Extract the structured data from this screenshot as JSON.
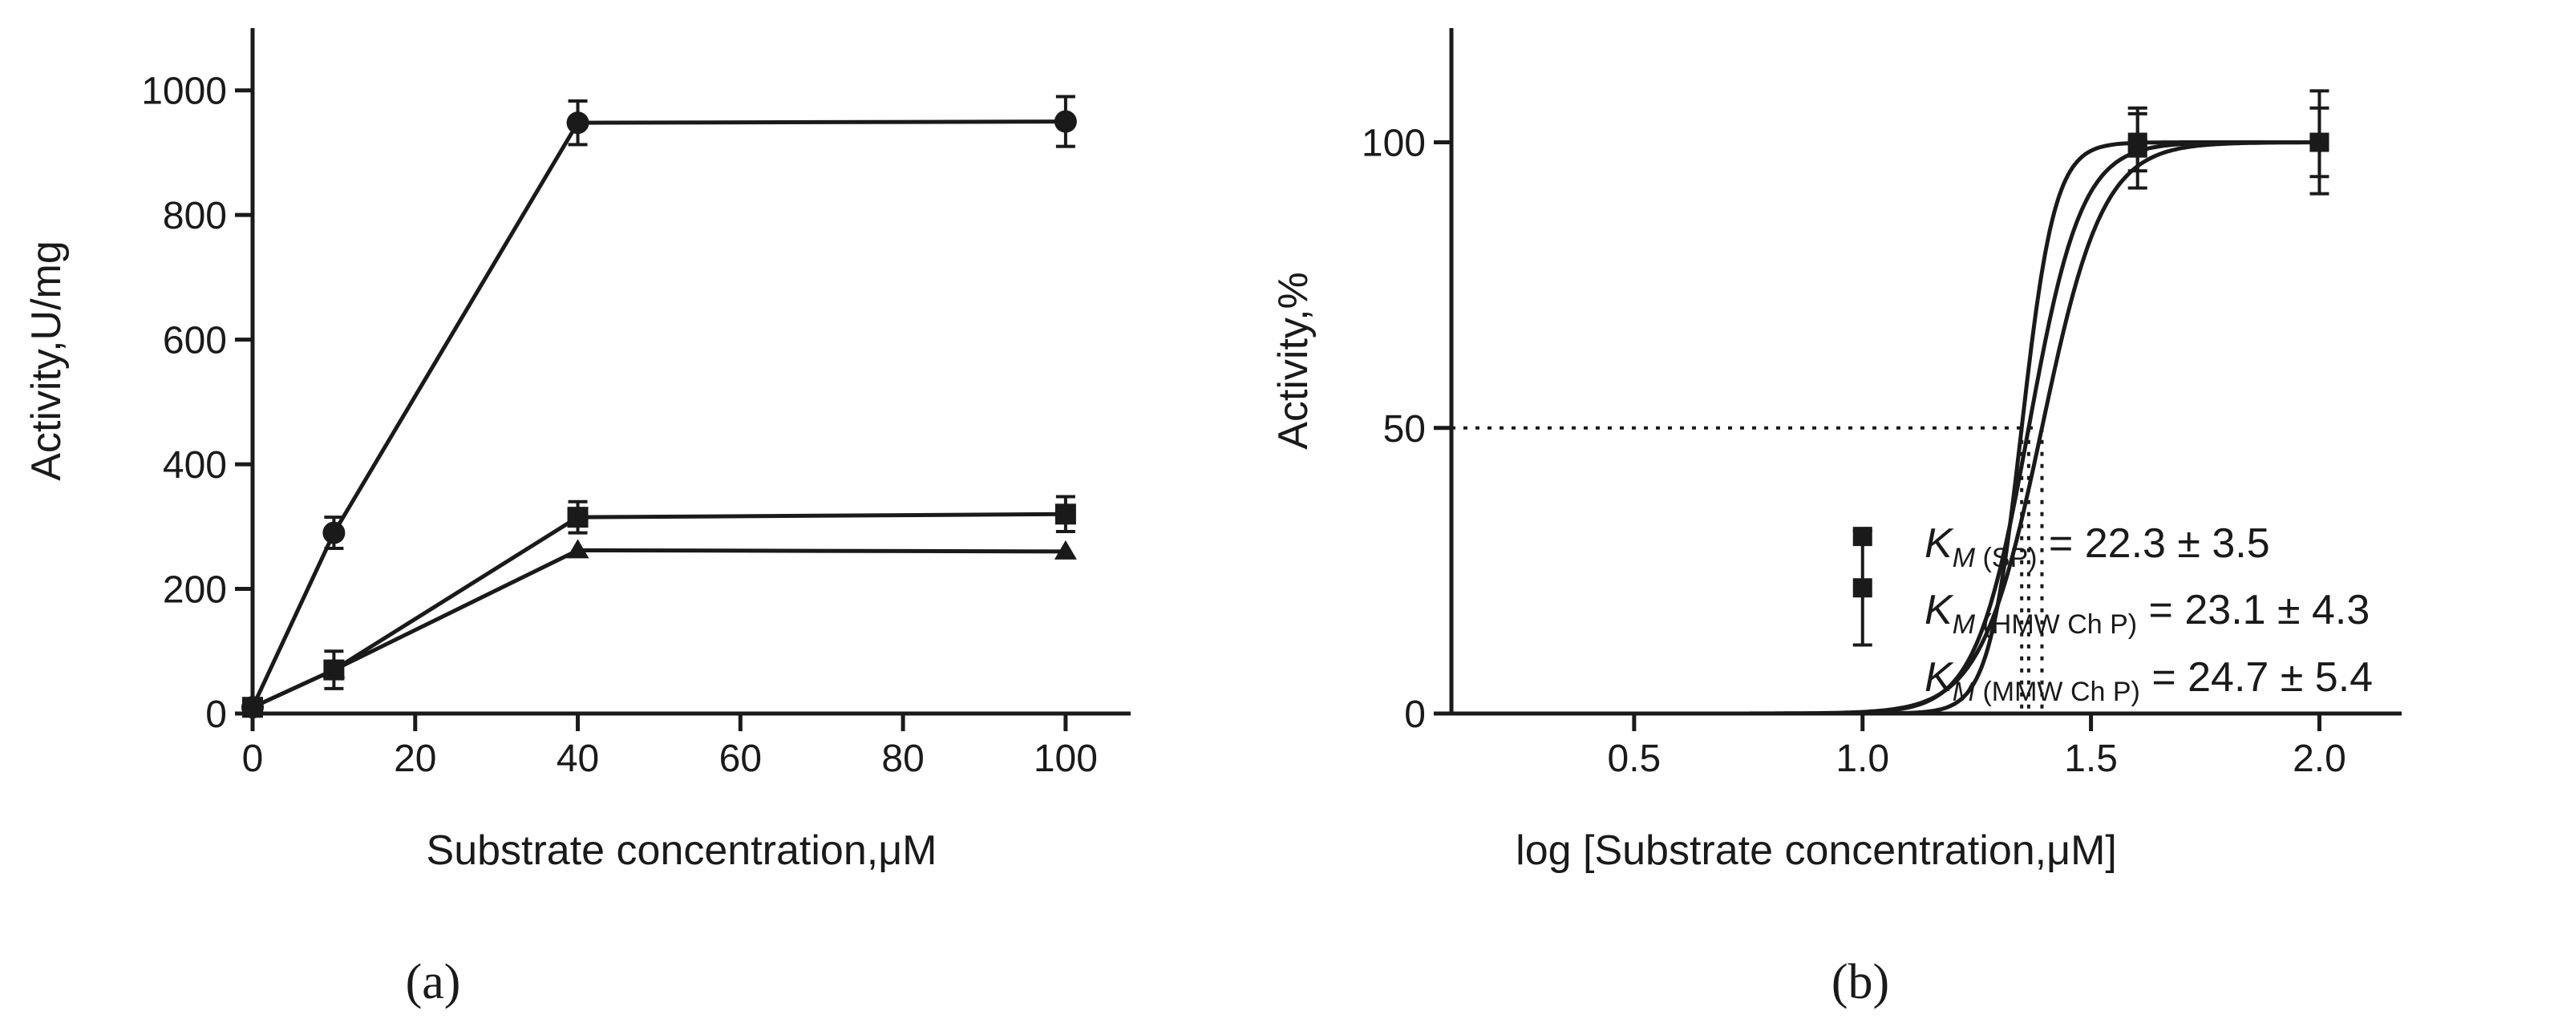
{
  "chart_data": [
    {
      "type": "line",
      "panel_label": "a",
      "title": "",
      "xlabel": "Substrate concentration,μM",
      "ylabel": "Activity,U/mg",
      "xlim": [
        0,
        108
      ],
      "ylim": [
        0,
        1100
      ],
      "x_ticks": [
        0,
        20,
        40,
        60,
        80,
        100
      ],
      "y_ticks": [
        0,
        200,
        400,
        600,
        800,
        1000
      ],
      "x": [
        0,
        10,
        40,
        100
      ],
      "series": [
        {
          "name": "circle",
          "marker": "circle",
          "values": [
            10,
            290,
            948,
            950
          ],
          "errors": [
            5,
            25,
            35,
            40
          ]
        },
        {
          "name": "square",
          "marker": "square",
          "values": [
            10,
            70,
            315,
            320
          ],
          "errors": [
            5,
            30,
            25,
            28
          ]
        },
        {
          "name": "triangle",
          "marker": "triangle",
          "values": [
            10,
            70,
            262,
            260
          ],
          "errors": [
            0,
            0,
            0,
            0
          ]
        }
      ]
    },
    {
      "type": "line",
      "panel_label": "b",
      "title": "",
      "xlabel": "log [Substrate concentration,μM]",
      "ylabel": "Activity,%",
      "xlim": [
        0.1,
        2.18
      ],
      "ylim": [
        0,
        120
      ],
      "x_ticks": [
        0.5,
        1.0,
        1.5,
        2.0
      ],
      "x_tick_labels": [
        "0.5",
        "1.0",
        "1.5",
        "2.0"
      ],
      "y_ticks": [
        0,
        50,
        100
      ],
      "reference_level": 50,
      "fits": [
        {
          "name": "SP",
          "km": 22.3,
          "km_err": 3.5,
          "hill": 12
        },
        {
          "name": "HMW Ch P",
          "km": 23.1,
          "km_err": 4.3,
          "hill": 7.5
        },
        {
          "name": "MMW Ch P",
          "km": 24.7,
          "km_err": 5.4,
          "hill": 6.5
        }
      ],
      "points": [
        {
          "x": 1.0,
          "y": 31,
          "err": 0
        },
        {
          "x": 1.0,
          "y": 22,
          "err": 10
        },
        {
          "x": 1.602,
          "y": 99,
          "err": 7
        },
        {
          "x": 1.602,
          "y": 100,
          "err": 5
        },
        {
          "x": 2.0,
          "y": 100,
          "err": 9
        },
        {
          "x": 2.0,
          "y": 100,
          "err": 6
        }
      ],
      "annotations": [
        {
          "symbol": "K",
          "subscript_italic": "M",
          "subscript": " (SP)",
          "text": " = 22.3 ± 3.5"
        },
        {
          "symbol": "K",
          "subscript_italic": "M",
          "subscript": " (HMW Ch P)",
          "text": " = 23.1 ± 4.3"
        },
        {
          "symbol": "K",
          "subscript_italic": "M",
          "subscript": " (MMW Ch P)",
          "text": " = 24.7 ± 5.4"
        }
      ]
    }
  ],
  "labels": {
    "panel_a": "(a)",
    "panel_b": "(b)"
  }
}
